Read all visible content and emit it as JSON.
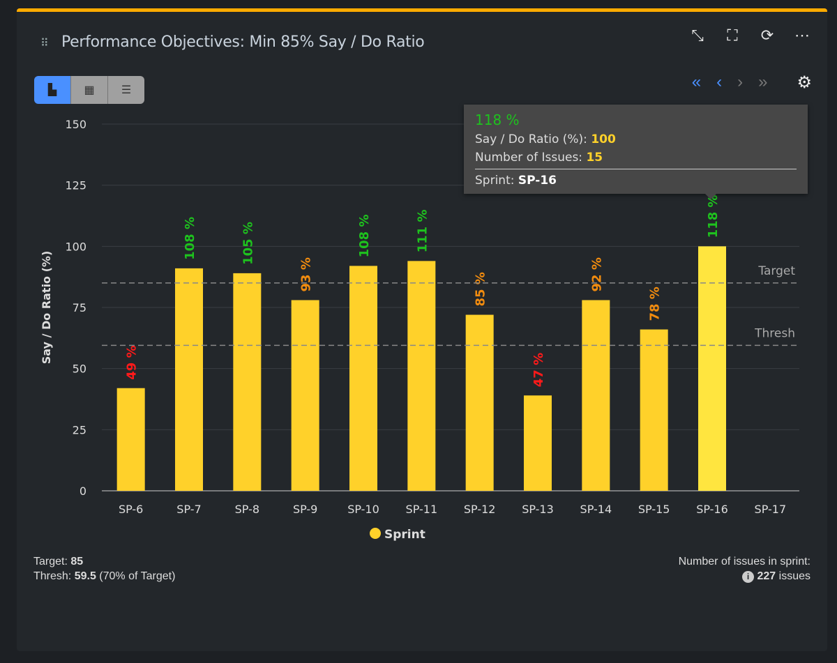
{
  "header": {
    "title": "Performance Objectives: Min 85% Say / Do Ratio",
    "icons": [
      "collapse-icon",
      "fullscreen-icon",
      "refresh-icon",
      "more-icon"
    ]
  },
  "view_toggle": [
    "chart-view",
    "table-view",
    "list-view"
  ],
  "colors": {
    "accent": "#ffab00",
    "bar": "#ffd12a",
    "bar_highlight": "#ffe53f",
    "green": "#1ec21e",
    "orange": "#f28c0f",
    "red": "#ff1a1a"
  },
  "chart_data": {
    "type": "bar",
    "ylabel": "Say / Do Ratio (%)",
    "ylim": [
      0,
      150
    ],
    "yticks": [
      0,
      25,
      50,
      75,
      100,
      125,
      150
    ],
    "categories": [
      "SP-6",
      "SP-7",
      "SP-8",
      "SP-9",
      "SP-10",
      "SP-11",
      "SP-12",
      "SP-13",
      "SP-14",
      "SP-15",
      "SP-16",
      "SP-17"
    ],
    "series": [
      {
        "name": "Sprint",
        "values": [
          42,
          91,
          89,
          78,
          92,
          94,
          72,
          39,
          78,
          66,
          100,
          null
        ]
      }
    ],
    "data_labels": [
      "49 %",
      "108 %",
      "105 %",
      "93 %",
      "108 %",
      "111 %",
      "85 %",
      "47 %",
      "92 %",
      "78 %",
      "118 %",
      ""
    ],
    "label_colors": [
      "red",
      "green",
      "green",
      "orange",
      "green",
      "green",
      "orange",
      "red",
      "orange",
      "orange",
      "green",
      ""
    ],
    "reference_lines": [
      {
        "label": "Target",
        "value": 85
      },
      {
        "label": "Thresh",
        "value": 59.5
      }
    ],
    "legend": "bottom",
    "grid": true
  },
  "tooltip": {
    "headline": "118 %",
    "ratio_label": "Say / Do Ratio (%):",
    "ratio_value": "100",
    "issues_label": "Number of Issues:",
    "issues_value": "15",
    "sprint_label": "Sprint:",
    "sprint_value": "SP-16"
  },
  "footer": {
    "target_label": "Target:",
    "target_value": "85",
    "thresh_label": "Thresh:",
    "thresh_value": "59.5",
    "thresh_note": "(70% of Target)",
    "issues_heading": "Number of issues in sprint:",
    "issues_count": "227",
    "issues_unit": "issues"
  }
}
